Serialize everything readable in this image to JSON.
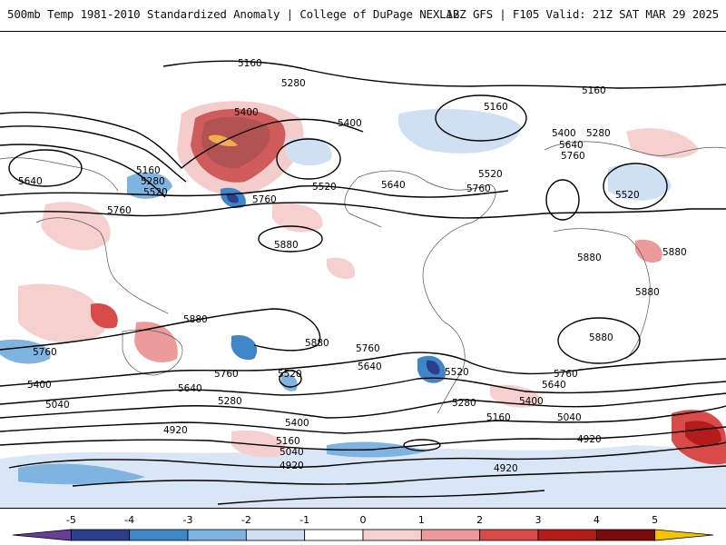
{
  "header": {
    "left_title": "500mb Temp 1981-2010 Standardized Anomaly | College of DuPage NEXLAB",
    "right_title": "12Z GFS | F105 Valid: 21Z SAT MAR 29 2025"
  },
  "map": {
    "field": "500mb temperature standardized anomaly",
    "contour_labels": [
      "5160",
      "5280",
      "5400",
      "5520",
      "5640",
      "5760",
      "5880",
      "5040",
      "4920"
    ],
    "colors": {
      "neg5": "#6a3d9a",
      "neg4": "#2b3f8c",
      "neg3": "#3f86c8",
      "neg2": "#7fb3e0",
      "neg1": "#cfe0f2",
      "zero": "#ffffff",
      "pos1": "#f6cfcf",
      "pos2": "#ec9a9a",
      "pos3": "#d94a4a",
      "pos4": "#b41c1c",
      "pos5": "#7a0b0b",
      "pos6": "#f5c400"
    }
  },
  "colorbar": {
    "ticks": [
      "-5",
      "-4",
      "-3",
      "-2",
      "-1",
      "0",
      "1",
      "2",
      "3",
      "4",
      "5"
    ],
    "colors": [
      "#6a3d9a",
      "#2b3f8c",
      "#3f86c8",
      "#7fb3e0",
      "#cfe0f2",
      "#ffffff",
      "#f6cfcf",
      "#ec9a9a",
      "#d94a4a",
      "#b41c1c",
      "#7a0b0b",
      "#f5c400"
    ]
  }
}
